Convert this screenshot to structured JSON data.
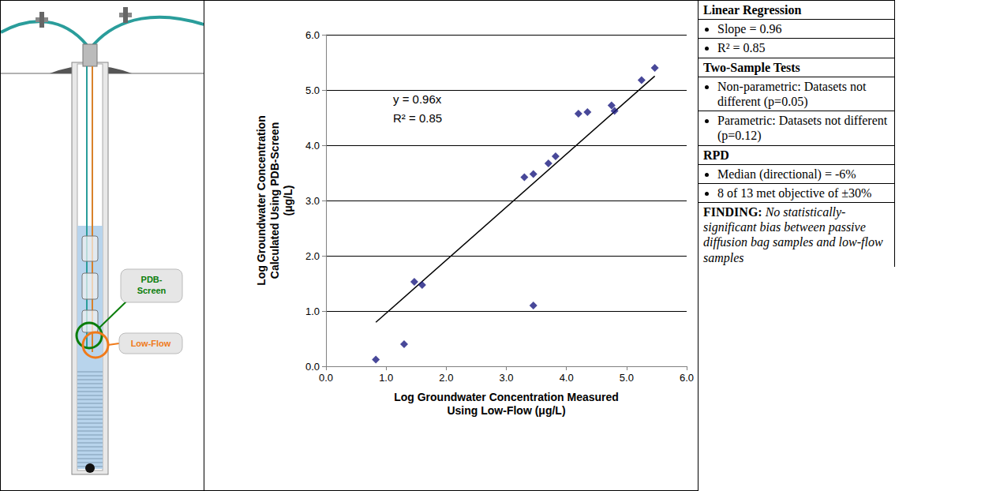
{
  "diagram": {
    "labels": {
      "pdb": "PDB-Screen",
      "low_flow": "Low-Flow"
    }
  },
  "chart_data": {
    "type": "scatter",
    "x_label": "Log Groundwater Concentration Measured Using Low-Flow (μg/L)",
    "y_label": "Log Groundwater Concentration Calculated Using PDB-Screen (μg/L)",
    "x": [
      0.83,
      1.3,
      1.47,
      1.6,
      3.3,
      3.45,
      3.45,
      3.7,
      3.82,
      4.2,
      4.35,
      4.75,
      4.8,
      5.25,
      5.47
    ],
    "values": [
      0.12,
      0.4,
      1.53,
      1.47,
      3.42,
      3.48,
      1.1,
      3.67,
      3.8,
      4.57,
      4.6,
      4.72,
      4.62,
      5.18,
      5.4
    ],
    "color": "#1a1a80",
    "marker": "diamond",
    "trendline": {
      "slope": 0.96,
      "equation": "y = 0.96x",
      "r2_label": "R² = 0.85",
      "color": "#000000"
    },
    "xlim": [
      0,
      6
    ],
    "ylim": [
      0,
      6
    ],
    "xticks": [
      {
        "value": 0,
        "label": "0.0"
      },
      {
        "value": 1,
        "label": "1.0"
      },
      {
        "value": 2,
        "label": "2.0"
      },
      {
        "value": 3,
        "label": "3.0"
      },
      {
        "value": 4,
        "label": "4.0"
      },
      {
        "value": 5,
        "label": "5.0"
      },
      {
        "value": 6,
        "label": "6.0"
      }
    ],
    "yticks": [
      {
        "value": 0,
        "label": "0.0"
      },
      {
        "value": 1,
        "label": "1.0"
      },
      {
        "value": 2,
        "label": "2.0"
      },
      {
        "value": 3,
        "label": "3.0"
      },
      {
        "value": 4,
        "label": "4.0"
      },
      {
        "value": 5,
        "label": "5.0"
      },
      {
        "value": 6,
        "label": "6.0"
      }
    ],
    "grid": true
  },
  "table": {
    "sections": [
      {
        "heading": "Linear Regression",
        "items": [
          "Slope = 0.96",
          "R² = 0.85"
        ]
      },
      {
        "heading": "Two-Sample Tests",
        "items": [
          "Non-parametric: Datasets not different (p=0.05)",
          "Parametric: Datasets not different (p=0.12)"
        ]
      },
      {
        "heading": "RPD",
        "items": [
          "Median (directional) = -6%",
          "8 of 13 met objective of ±30%"
        ]
      }
    ],
    "finding": {
      "label": "FINDING:",
      "text": "No statistically-significant bias between passive diffusion bag samples and low-flow samples"
    }
  }
}
